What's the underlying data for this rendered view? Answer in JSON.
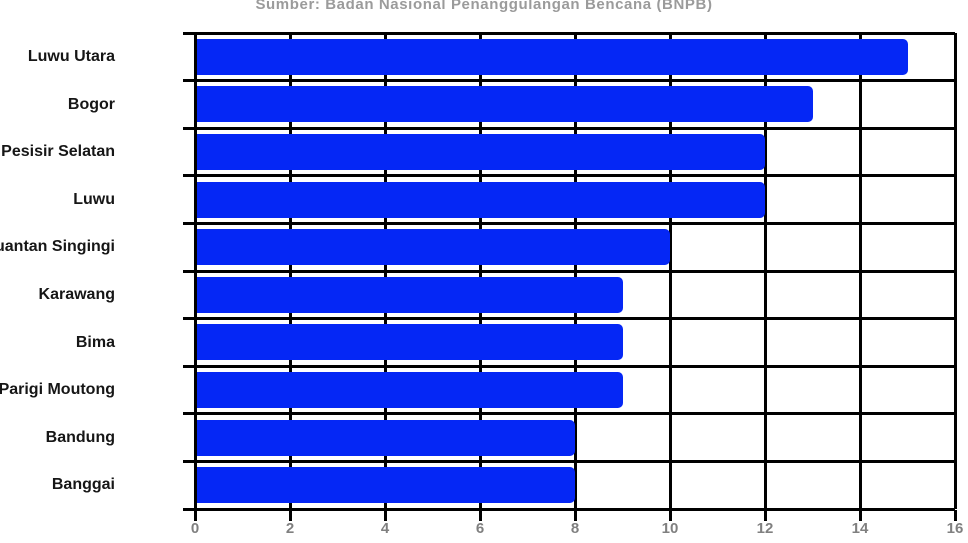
{
  "title": "Sumber: Badan Nasional Penanggulangan Bencana (BNPB)",
  "colors": {
    "bar": "#0527f5",
    "grid": "#000000",
    "title": "#9b9b9b",
    "tick_label": "#808080",
    "category_label": "#161616"
  },
  "chart_data": {
    "type": "bar",
    "orientation": "horizontal",
    "title": "Sumber: Badan Nasional Penanggulangan Bencana (BNPB)",
    "categories": [
      "Luwu Utara",
      "Bogor",
      "Pesisir Selatan",
      "Luwu",
      "Kuantan Singingi",
      "Karawang",
      "Bima",
      "Parigi Moutong",
      "Bandung",
      "Banggai"
    ],
    "values": [
      15,
      13,
      12,
      12,
      10,
      9,
      9,
      9,
      8,
      8
    ],
    "x_ticks": [
      0,
      2,
      4,
      6,
      8,
      10,
      12,
      14,
      16
    ],
    "xlim": [
      0,
      16
    ],
    "xlabel": "",
    "ylabel": "",
    "grid": true,
    "legend": false
  }
}
